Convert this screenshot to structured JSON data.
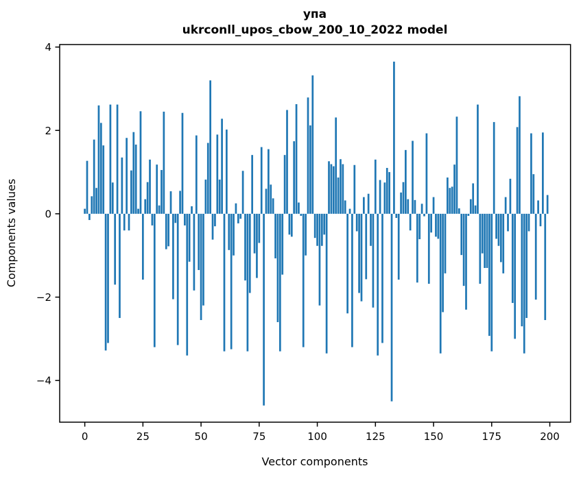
{
  "figure": {
    "title": "упа",
    "subtitle": "ukrconll_upos_cbow_200_10_2022 model"
  },
  "chart_data": {
    "type": "bar",
    "title": "упа",
    "subtitle": "ukrconll_upos_cbow_200_10_2022 model",
    "xlabel": "Vector components",
    "ylabel": "Components values",
    "xlim": [
      -10.8,
      208.9
    ],
    "ylim": [
      -5.0,
      4.06
    ],
    "xticks": [
      0,
      25,
      50,
      75,
      100,
      125,
      150,
      175,
      200
    ],
    "xtick_labels": [
      "0",
      "25",
      "50",
      "75",
      "100",
      "125",
      "150",
      "175",
      "200"
    ],
    "yticks": [
      4,
      2,
      0,
      -2,
      -4
    ],
    "ytick_labels": [
      "4",
      "2",
      "0",
      "−2",
      "−4"
    ],
    "grid": false,
    "legend_position": "none",
    "bar_color": "#1f77b4",
    "bar_width": 0.8,
    "x_start": 0,
    "x_step": 1,
    "values": [
      0.12,
      1.27,
      -0.15,
      0.42,
      1.78,
      0.62,
      2.6,
      2.18,
      1.64,
      -3.28,
      -3.1,
      2.62,
      0.75,
      -1.7,
      2.62,
      -2.5,
      1.35,
      -0.4,
      1.82,
      -0.4,
      1.04,
      1.96,
      1.66,
      0.12,
      2.46,
      -1.58,
      0.35,
      0.76,
      1.3,
      -0.28,
      -3.2,
      1.18,
      0.2,
      1.05,
      2.45,
      -0.85,
      -0.78,
      0.54,
      -2.05,
      -0.22,
      -3.15,
      0.55,
      2.42,
      -0.28,
      -3.4,
      -1.15,
      0.18,
      -1.84,
      1.88,
      -1.35,
      -2.55,
      -2.2,
      0.82,
      1.7,
      3.2,
      -0.62,
      -0.3,
      1.9,
      0.82,
      2.28,
      -3.3,
      2.02,
      -0.87,
      -3.25,
      -1.0,
      0.25,
      -0.23,
      -0.12,
      1.03,
      -1.6,
      -3.3,
      -1.9,
      1.41,
      -0.95,
      -1.54,
      -0.7,
      1.6,
      -4.6,
      0.6,
      1.55,
      0.7,
      0.37,
      -1.07,
      -2.6,
      -3.3,
      -1.46,
      1.41,
      2.49,
      -0.5,
      -0.55,
      1.74,
      2.63,
      0.27,
      -0.05,
      -3.2,
      -1.0,
      2.79,
      2.12,
      3.32,
      -0.58,
      -0.77,
      -2.2,
      -0.77,
      -0.5,
      -3.35,
      1.26,
      1.19,
      1.14,
      2.31,
      0.87,
      1.31,
      1.19,
      0.32,
      -2.39,
      0.12,
      -3.2,
      1.17,
      -0.42,
      -1.9,
      -2.1,
      0.4,
      -1.57,
      0.48,
      -0.77,
      -2.25,
      1.3,
      -3.4,
      0.81,
      -3.1,
      0.75,
      1.1,
      1.0,
      -4.5,
      3.65,
      -0.1,
      -1.58,
      0.51,
      0.76,
      1.53,
      0.35,
      -0.4,
      1.75,
      0.33,
      -1.65,
      -0.61,
      0.24,
      -0.06,
      1.93,
      -1.68,
      -0.45,
      0.4,
      -0.55,
      -0.6,
      -3.35,
      -2.36,
      -1.43,
      0.87,
      0.62,
      0.65,
      1.18,
      2.33,
      0.13,
      -0.99,
      -1.73,
      -2.3,
      -0.05,
      0.35,
      0.73,
      0.2,
      2.62,
      -1.68,
      -0.95,
      -1.3,
      -1.3,
      -2.93,
      -3.3,
      2.2,
      -0.6,
      -0.77,
      -1.16,
      -1.43,
      0.4,
      -0.42,
      0.84,
      -2.14,
      -3.0,
      2.08,
      2.82,
      -2.7,
      -3.35,
      -2.5,
      -0.42,
      1.93,
      0.95,
      -2.06,
      0.32,
      -0.3,
      1.95,
      -2.55,
      0.45
    ]
  }
}
